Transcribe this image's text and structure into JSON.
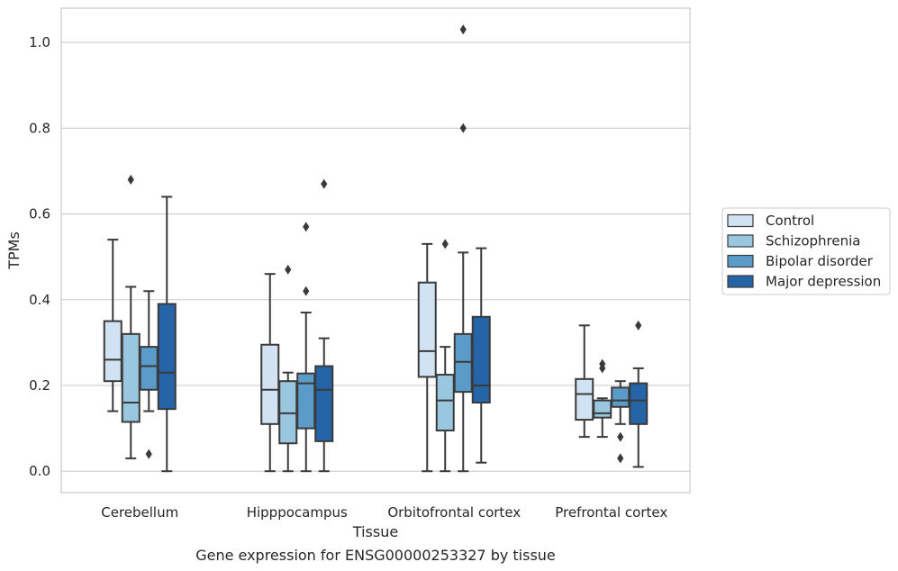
{
  "chart_data": {
    "type": "boxplot",
    "caption": "Gene expression for ENSG00000253327 by tissue",
    "xlabel": "Tissue",
    "ylabel": "TPMs",
    "ylim": [
      -0.05,
      1.08
    ],
    "yticks": [
      0.0,
      0.2,
      0.4,
      0.6,
      0.8,
      1.0
    ],
    "ytick_labels": [
      "0.0",
      "0.2",
      "0.4",
      "0.6",
      "0.8",
      "1.0"
    ],
    "grid": "horizontal",
    "legend_position": "right",
    "categories": [
      "Cerebellum",
      "Hipppocampus",
      "Orbitofrontal cortex",
      "Prefrontal cortex"
    ],
    "series": [
      {
        "name": "Control",
        "color": "#d1e2f2",
        "boxes": [
          {
            "whislo": 0.14,
            "q1": 0.21,
            "med": 0.26,
            "q3": 0.35,
            "whishi": 0.54,
            "fliers": []
          },
          {
            "whislo": 0.0,
            "q1": 0.11,
            "med": 0.19,
            "q3": 0.295,
            "whishi": 0.46,
            "fliers": []
          },
          {
            "whislo": 0.0,
            "q1": 0.22,
            "med": 0.28,
            "q3": 0.44,
            "whishi": 0.53,
            "fliers": []
          },
          {
            "whislo": 0.08,
            "q1": 0.12,
            "med": 0.18,
            "q3": 0.215,
            "whishi": 0.34,
            "fliers": []
          }
        ]
      },
      {
        "name": "Schizophrenia",
        "color": "#9ac7e0",
        "boxes": [
          {
            "whislo": 0.03,
            "q1": 0.115,
            "med": 0.16,
            "q3": 0.32,
            "whishi": 0.43,
            "fliers": [
              0.68
            ]
          },
          {
            "whislo": 0.0,
            "q1": 0.065,
            "med": 0.135,
            "q3": 0.21,
            "whishi": 0.23,
            "fliers": [
              0.47
            ]
          },
          {
            "whislo": 0.0,
            "q1": 0.095,
            "med": 0.165,
            "q3": 0.225,
            "whishi": 0.29,
            "fliers": [
              0.53
            ]
          },
          {
            "whislo": 0.08,
            "q1": 0.125,
            "med": 0.135,
            "q3": 0.165,
            "whishi": 0.17,
            "fliers": [
              0.24,
              0.25
            ]
          }
        ]
      },
      {
        "name": "Bipolar disorder",
        "color": "#5a9bc9",
        "boxes": [
          {
            "whislo": 0.14,
            "q1": 0.19,
            "med": 0.245,
            "q3": 0.29,
            "whishi": 0.42,
            "fliers": [
              0.04
            ]
          },
          {
            "whislo": 0.0,
            "q1": 0.1,
            "med": 0.205,
            "q3": 0.228,
            "whishi": 0.37,
            "fliers": [
              0.42,
              0.57
            ]
          },
          {
            "whislo": 0.0,
            "q1": 0.185,
            "med": 0.255,
            "q3": 0.32,
            "whishi": 0.51,
            "fliers": [
              0.8,
              1.03
            ]
          },
          {
            "whislo": 0.11,
            "q1": 0.15,
            "med": 0.165,
            "q3": 0.195,
            "whishi": 0.21,
            "fliers": [
              0.08,
              0.03
            ]
          }
        ]
      },
      {
        "name": "Major depression",
        "color": "#2565a7",
        "boxes": [
          {
            "whislo": 0.0,
            "q1": 0.145,
            "med": 0.23,
            "q3": 0.39,
            "whishi": 0.64,
            "fliers": []
          },
          {
            "whislo": 0.0,
            "q1": 0.07,
            "med": 0.19,
            "q3": 0.245,
            "whishi": 0.31,
            "fliers": [
              0.67
            ]
          },
          {
            "whislo": 0.02,
            "q1": 0.16,
            "med": 0.2,
            "q3": 0.36,
            "whishi": 0.52,
            "fliers": []
          },
          {
            "whislo": 0.01,
            "q1": 0.11,
            "med": 0.165,
            "q3": 0.205,
            "whishi": 0.24,
            "fliers": [
              0.34
            ]
          }
        ]
      }
    ]
  }
}
